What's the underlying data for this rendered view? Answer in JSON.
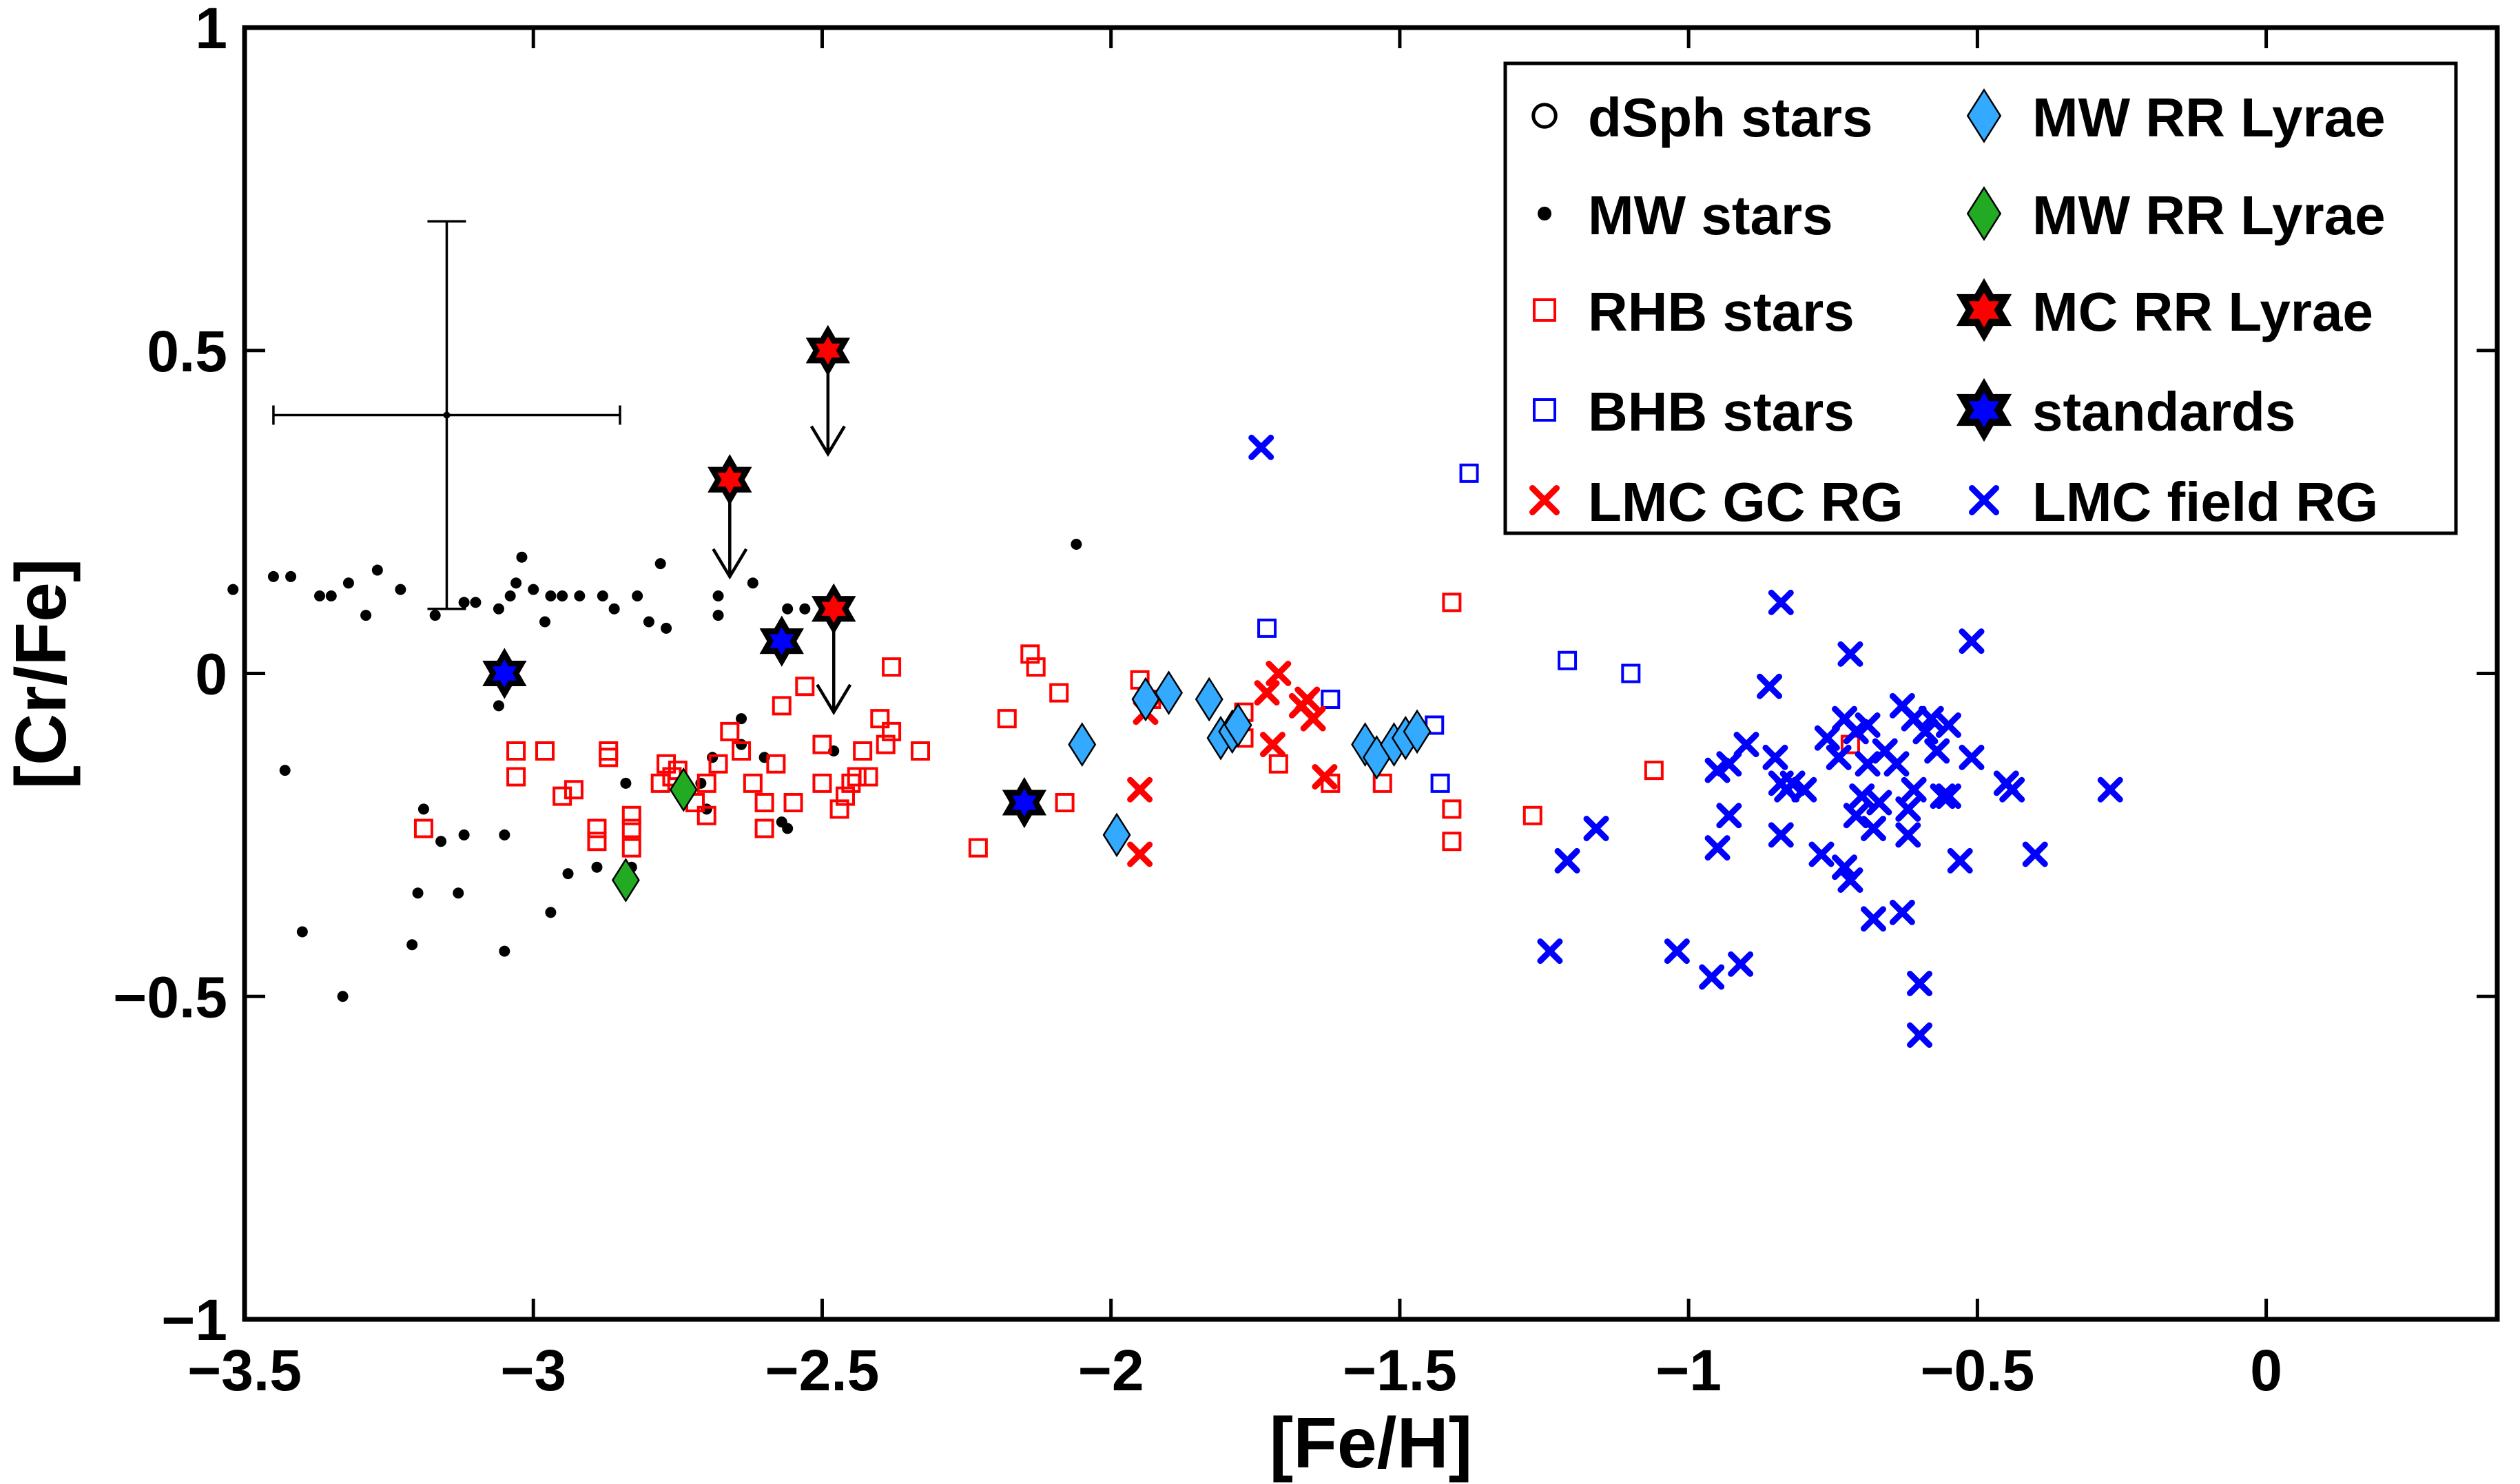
{
  "chart_data": {
    "type": "scatter",
    "xlabel": "[Fe/H]",
    "ylabel": "[Cr/Fe]",
    "xlim": [
      -3.5,
      0.4
    ],
    "ylim": [
      -1,
      1
    ],
    "xticks": [
      -3.5,
      -3,
      -2.5,
      -2,
      -1.5,
      -1,
      -0.5,
      0
    ],
    "xtick_labels": [
      "−3.5",
      "−3",
      "−2.5",
      "−2",
      "−1.5",
      "−1",
      "−0.5",
      "0"
    ],
    "yticks": [
      -1,
      -0.5,
      0,
      0.5,
      1
    ],
    "ytick_labels": [
      "−1",
      "−0.5",
      "0",
      "0.5",
      "1"
    ],
    "grid": false,
    "legend_position": "top-right",
    "legend": [
      {
        "label": "dSph stars",
        "marker": "circle-open",
        "color": "#000000"
      },
      {
        "label": "MW stars",
        "marker": "dot",
        "color": "#000000"
      },
      {
        "label": "RHB stars",
        "marker": "square-open",
        "color": "#ff0000"
      },
      {
        "label": "BHB stars",
        "marker": "square-open",
        "color": "#0000ff"
      },
      {
        "label": "LMC GC RG",
        "marker": "x",
        "color": "#ff0000"
      },
      {
        "label": "MW RR Lyrae",
        "marker": "diamond",
        "color": "#33aaff"
      },
      {
        "label": "MW RR Lyrae",
        "marker": "diamond",
        "color": "#22aa22"
      },
      {
        "label": "MC RR Lyrae",
        "marker": "hexagram",
        "color": "#ff0000"
      },
      {
        "label": "standards",
        "marker": "hexagram",
        "color": "#0000ff"
      },
      {
        "label": "LMC field RG",
        "marker": "x",
        "color": "#0000ff"
      }
    ],
    "error_bar": {
      "x": -3.15,
      "y": 0.4,
      "xerr": 0.3,
      "yerr": 0.3
    },
    "upper_limit_arrows": [
      {
        "x": -2.66,
        "y_from": 0.3,
        "y_to": 0.15
      },
      {
        "x": -2.49,
        "y_from": 0.5,
        "y_to": 0.34
      },
      {
        "x": -2.48,
        "y_from": 0.1,
        "y_to": -0.06
      }
    ],
    "series": [
      {
        "name": "MW stars",
        "marker": "dot",
        "color": "#000000",
        "points": [
          [
            -3.52,
            0.13
          ],
          [
            -3.45,
            0.15
          ],
          [
            -3.42,
            0.15
          ],
          [
            -3.37,
            0.12
          ],
          [
            -3.35,
            0.12
          ],
          [
            -3.32,
            0.14
          ],
          [
            -3.29,
            0.09
          ],
          [
            -3.27,
            0.16
          ],
          [
            -3.23,
            0.13
          ],
          [
            -3.17,
            0.09
          ],
          [
            -3.12,
            0.11
          ],
          [
            -3.1,
            0.11
          ],
          [
            -3.06,
            0.1
          ],
          [
            -3.04,
            0.12
          ],
          [
            -3.03,
            0.14
          ],
          [
            -3.02,
            0.18
          ],
          [
            -3.0,
            0.13
          ],
          [
            -2.98,
            0.08
          ],
          [
            -2.97,
            0.12
          ],
          [
            -2.95,
            0.12
          ],
          [
            -2.92,
            0.12
          ],
          [
            -2.88,
            0.12
          ],
          [
            -2.86,
            0.1
          ],
          [
            -2.82,
            0.12
          ],
          [
            -2.8,
            0.08
          ],
          [
            -2.78,
            0.17
          ],
          [
            -2.77,
            0.07
          ],
          [
            -2.68,
            0.12
          ],
          [
            -2.68,
            0.09
          ],
          [
            -2.62,
            0.14
          ],
          [
            -2.56,
            0.1
          ],
          [
            -2.53,
            0.1
          ],
          [
            -3.43,
            -0.15
          ],
          [
            -3.4,
            -0.4
          ],
          [
            -3.33,
            -0.5
          ],
          [
            -3.21,
            -0.42
          ],
          [
            -3.2,
            -0.34
          ],
          [
            -3.19,
            -0.21
          ],
          [
            -3.16,
            -0.26
          ],
          [
            -3.13,
            -0.34
          ],
          [
            -3.12,
            -0.25
          ],
          [
            -3.05,
            -0.25
          ],
          [
            -3.05,
            -0.43
          ],
          [
            -2.97,
            -0.37
          ],
          [
            -2.94,
            -0.31
          ],
          [
            -2.89,
            -0.3
          ],
          [
            -2.84,
            -0.17
          ],
          [
            -2.83,
            -0.3
          ],
          [
            -2.71,
            -0.17
          ],
          [
            -2.7,
            -0.21
          ],
          [
            -2.69,
            -0.13
          ],
          [
            -2.64,
            -0.07
          ],
          [
            -2.64,
            -0.11
          ],
          [
            -2.6,
            -0.13
          ],
          [
            -2.57,
            -0.23
          ],
          [
            -2.56,
            -0.24
          ],
          [
            -2.48,
            -0.12
          ],
          [
            -2.06,
            0.2
          ],
          [
            -3.06,
            -0.05
          ],
          [
            -2.05,
            -0.1
          ]
        ]
      },
      {
        "name": "RHB stars",
        "marker": "square-open",
        "color": "#ff0000",
        "points": [
          [
            -3.19,
            -0.24
          ],
          [
            -3.03,
            -0.12
          ],
          [
            -3.03,
            -0.16
          ],
          [
            -2.98,
            -0.12
          ],
          [
            -2.95,
            -0.19
          ],
          [
            -2.93,
            -0.18
          ],
          [
            -2.89,
            -0.24
          ],
          [
            -2.89,
            -0.26
          ],
          [
            -2.87,
            -0.12
          ],
          [
            -2.87,
            -0.13
          ],
          [
            -2.83,
            -0.24
          ],
          [
            -2.83,
            -0.22
          ],
          [
            -2.83,
            -0.27
          ],
          [
            -2.78,
            -0.17
          ],
          [
            -2.77,
            -0.14
          ],
          [
            -2.76,
            -0.16
          ],
          [
            -2.75,
            -0.15
          ],
          [
            -2.72,
            -0.2
          ],
          [
            -2.7,
            -0.17
          ],
          [
            -2.7,
            -0.22
          ],
          [
            -2.68,
            -0.14
          ],
          [
            -2.66,
            -0.09
          ],
          [
            -2.64,
            -0.12
          ],
          [
            -2.62,
            -0.17
          ],
          [
            -2.6,
            -0.2
          ],
          [
            -2.6,
            -0.24
          ],
          [
            -2.58,
            -0.14
          ],
          [
            -2.57,
            -0.05
          ],
          [
            -2.55,
            -0.2
          ],
          [
            -2.53,
            -0.02
          ],
          [
            -2.5,
            -0.11
          ],
          [
            -2.5,
            -0.17
          ],
          [
            -2.47,
            -0.21
          ],
          [
            -2.46,
            -0.19
          ],
          [
            -2.45,
            -0.17
          ],
          [
            -2.44,
            -0.16
          ],
          [
            -2.43,
            -0.12
          ],
          [
            -2.42,
            -0.16
          ],
          [
            -2.4,
            -0.07
          ],
          [
            -2.39,
            -0.11
          ],
          [
            -2.38,
            -0.09
          ],
          [
            -2.38,
            0.01
          ],
          [
            -2.33,
            -0.12
          ],
          [
            -2.23,
            -0.27
          ],
          [
            -2.18,
            -0.07
          ],
          [
            -2.14,
            0.03
          ],
          [
            -2.13,
            0.01
          ],
          [
            -2.09,
            -0.03
          ],
          [
            -2.08,
            -0.2
          ],
          [
            -1.95,
            -0.01
          ],
          [
            -1.93,
            -0.04
          ],
          [
            -1.77,
            -0.06
          ],
          [
            -1.77,
            -0.1
          ],
          [
            -1.71,
            -0.14
          ],
          [
            -1.62,
            -0.17
          ],
          [
            -1.53,
            -0.17
          ],
          [
            -1.41,
            -0.21
          ],
          [
            -1.41,
            -0.26
          ],
          [
            -1.41,
            0.11
          ],
          [
            -1.27,
            -0.22
          ],
          [
            -1.06,
            -0.15
          ],
          [
            -0.72,
            -0.11
          ]
        ]
      },
      {
        "name": "BHB stars",
        "marker": "square-open",
        "color": "#0000ff",
        "points": [
          [
            -1.73,
            0.07
          ],
          [
            -1.62,
            -0.04
          ],
          [
            -1.44,
            -0.08
          ],
          [
            -1.43,
            -0.17
          ],
          [
            -1.38,
            0.31
          ],
          [
            -1.21,
            0.02
          ],
          [
            -1.1,
            0.0
          ]
        ]
      },
      {
        "name": "LMC GC RG",
        "marker": "x",
        "color": "#ff0000",
        "points": [
          [
            -1.95,
            -0.18
          ],
          [
            -1.95,
            -0.28
          ],
          [
            -1.94,
            -0.06
          ],
          [
            -1.73,
            -0.03
          ],
          [
            -1.72,
            -0.11
          ],
          [
            -1.71,
            0.0
          ],
          [
            -1.67,
            -0.05
          ],
          [
            -1.66,
            -0.04
          ],
          [
            -1.65,
            -0.07
          ],
          [
            -1.63,
            -0.16
          ]
        ]
      },
      {
        "name": "LMC field RG",
        "marker": "x",
        "color": "#0000ff",
        "points": [
          [
            -1.74,
            0.35
          ],
          [
            -1.24,
            -0.43
          ],
          [
            -1.21,
            -0.29
          ],
          [
            -1.16,
            -0.24
          ],
          [
            -1.02,
            -0.43
          ],
          [
            -0.96,
            -0.47
          ],
          [
            -0.95,
            -0.15
          ],
          [
            -0.95,
            -0.27
          ],
          [
            -0.93,
            -0.14
          ],
          [
            -0.93,
            -0.22
          ],
          [
            -0.91,
            -0.45
          ],
          [
            -0.9,
            -0.11
          ],
          [
            -0.86,
            -0.02
          ],
          [
            -0.85,
            -0.13
          ],
          [
            -0.84,
            -0.17
          ],
          [
            -0.84,
            -0.25
          ],
          [
            -0.84,
            0.11
          ],
          [
            -0.83,
            -0.18
          ],
          [
            -0.82,
            -0.17
          ],
          [
            -0.8,
            -0.18
          ],
          [
            -0.77,
            -0.28
          ],
          [
            -0.76,
            -0.1
          ],
          [
            -0.74,
            -0.13
          ],
          [
            -0.73,
            -0.07
          ],
          [
            -0.73,
            -0.3
          ],
          [
            -0.72,
            -0.32
          ],
          [
            -0.72,
            0.03
          ],
          [
            -0.71,
            -0.09
          ],
          [
            -0.71,
            -0.22
          ],
          [
            -0.7,
            -0.19
          ],
          [
            -0.69,
            -0.08
          ],
          [
            -0.69,
            -0.14
          ],
          [
            -0.68,
            -0.24
          ],
          [
            -0.68,
            -0.38
          ],
          [
            -0.67,
            -0.2
          ],
          [
            -0.66,
            -0.12
          ],
          [
            -0.64,
            -0.14
          ],
          [
            -0.63,
            -0.05
          ],
          [
            -0.63,
            -0.37
          ],
          [
            -0.62,
            -0.21
          ],
          [
            -0.62,
            -0.25
          ],
          [
            -0.61,
            -0.07
          ],
          [
            -0.61,
            -0.18
          ],
          [
            -0.6,
            -0.48
          ],
          [
            -0.6,
            -0.56
          ],
          [
            -0.59,
            -0.09
          ],
          [
            -0.58,
            -0.07
          ],
          [
            -0.57,
            -0.12
          ],
          [
            -0.56,
            -0.19
          ],
          [
            -0.55,
            -0.08
          ],
          [
            -0.55,
            -0.19
          ],
          [
            -0.53,
            -0.29
          ],
          [
            -0.51,
            -0.13
          ],
          [
            -0.51,
            0.05
          ],
          [
            -0.45,
            -0.17
          ],
          [
            -0.44,
            -0.18
          ],
          [
            -0.4,
            -0.28
          ],
          [
            -0.27,
            -0.18
          ]
        ]
      },
      {
        "name": "MW RR Lyrae",
        "marker": "diamond",
        "color": "#33aaff",
        "points": [
          [
            -2.05,
            -0.11
          ],
          [
            -1.99,
            -0.25
          ],
          [
            -1.94,
            -0.04
          ],
          [
            -1.9,
            -0.03
          ],
          [
            -1.83,
            -0.04
          ],
          [
            -1.81,
            -0.1
          ],
          [
            -1.79,
            -0.09
          ],
          [
            -1.78,
            -0.08
          ],
          [
            -1.56,
            -0.11
          ],
          [
            -1.54,
            -0.13
          ],
          [
            -1.51,
            -0.11
          ],
          [
            -1.49,
            -0.1
          ],
          [
            -1.47,
            -0.09
          ]
        ]
      },
      {
        "name": "MW RR Lyrae (green)",
        "marker": "diamond",
        "color": "#22aa22",
        "points": [
          [
            -2.84,
            -0.32
          ],
          [
            -2.74,
            -0.18
          ]
        ]
      },
      {
        "name": "MC RR Lyrae",
        "marker": "hexagram",
        "color": "#ff0000",
        "points": [
          [
            -2.66,
            0.3
          ],
          [
            -2.49,
            0.5
          ],
          [
            -2.48,
            0.1
          ]
        ]
      },
      {
        "name": "standards",
        "marker": "hexagram",
        "color": "#0000ff",
        "points": [
          [
            -3.05,
            0.0
          ],
          [
            -2.57,
            0.05
          ],
          [
            -2.15,
            -0.2
          ]
        ]
      }
    ]
  }
}
